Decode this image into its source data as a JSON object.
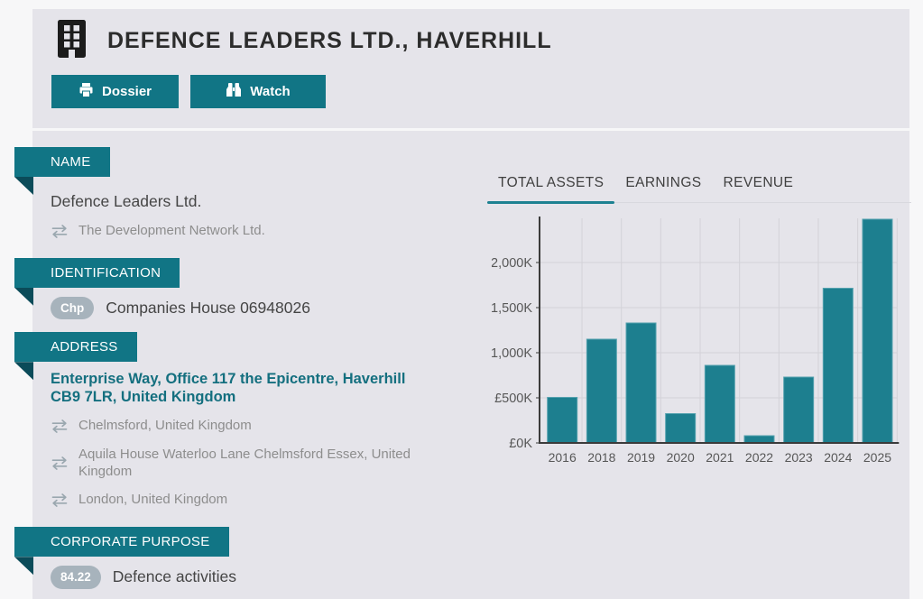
{
  "header": {
    "title": "DEFENCE LEADERS LTD., HAVERHILL",
    "buttons": [
      {
        "label": "Dossier",
        "icon": "printer-icon"
      },
      {
        "label": "Watch",
        "icon": "binoculars-icon"
      }
    ]
  },
  "sections": {
    "name": {
      "label": "NAME",
      "primary": "Defence Leaders Ltd.",
      "alternatives": [
        "The Development Network Ltd."
      ]
    },
    "identification": {
      "label": "IDENTIFICATION",
      "badge": "Chp",
      "value": "Companies House 06948026"
    },
    "address": {
      "label": "ADDRESS",
      "primary": "Enterprise Way, Office 117 the Epicentre, Haverhill CB9 7LR, United Kingdom",
      "alternatives": [
        "Chelmsford, United Kingdom",
        "Aquila House Waterloo Lane Chelmsford Essex, United Kingdom",
        "London, United Kingdom"
      ]
    },
    "corporate_purpose": {
      "label": "CORPORATE PURPOSE",
      "badge": "84.22",
      "value": "Defence activities"
    }
  },
  "financials": {
    "tabs": [
      {
        "label": "TOTAL ASSETS",
        "active": true
      },
      {
        "label": "EARNINGS",
        "active": false
      },
      {
        "label": "REVENUE",
        "active": false
      }
    ]
  },
  "chart_data": {
    "type": "bar",
    "title": "",
    "xlabel": "",
    "ylabel": "",
    "unit": "£K (GBP thousands)",
    "categories": [
      "2016",
      "2018",
      "2019",
      "2020",
      "2021",
      "2022",
      "2023",
      "2024",
      "2025"
    ],
    "values": [
      505,
      1150,
      1330,
      325,
      860,
      80,
      730,
      1715,
      2480
    ],
    "y_ticks": [
      "£0K",
      "£500K",
      "£1,000K",
      "£1,500K",
      "£2,000K"
    ],
    "y_tick_values": [
      0,
      500,
      1000,
      1500,
      2000
    ],
    "ylim": [
      0,
      2490
    ],
    "grid": true,
    "legend": "none",
    "bar_color": "#1d7f8f"
  },
  "colors": {
    "accent": "#117585",
    "accent_dark": "#0b4b59",
    "bar": "#1d7f8f",
    "bar_edge": "#55a2af",
    "badge": "#a7b3bc",
    "link_teal": "#146f7f",
    "card_bg": "#e5e4ea",
    "page_bg": "#f7f7f8",
    "grid": "#d3d2d8",
    "axis": "#3b3b3b",
    "axis_text": "#575757"
  }
}
